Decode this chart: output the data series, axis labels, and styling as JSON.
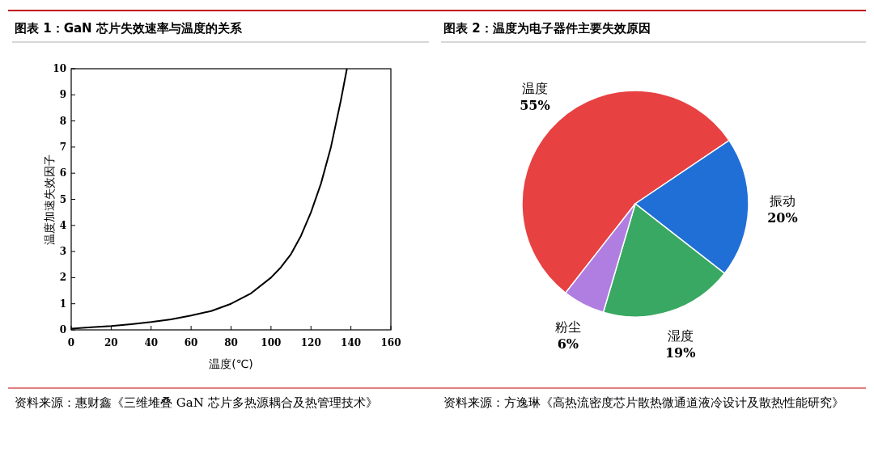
{
  "chart_data": [
    {
      "type": "line",
      "title": "图表 1：GaN 芯片失效速率与温度的关系",
      "xlabel": "温度(℃)",
      "ylabel": "温度加速失效因子",
      "x": [
        0,
        10,
        20,
        30,
        40,
        50,
        60,
        70,
        80,
        90,
        100,
        105,
        110,
        115,
        120,
        125,
        130,
        135,
        138
      ],
      "series": [
        {
          "color": "#000000",
          "values": [
            0.05,
            0.1,
            0.15,
            0.22,
            0.3,
            0.4,
            0.55,
            0.72,
            1.0,
            1.4,
            2.0,
            2.4,
            2.9,
            3.6,
            4.5,
            5.6,
            7.0,
            8.8,
            10
          ]
        }
      ],
      "xlim": [
        0,
        160
      ],
      "ylim": [
        0,
        10
      ],
      "xticks": [
        0,
        20,
        40,
        60,
        80,
        100,
        120,
        140,
        160
      ],
      "yticks": [
        0,
        1,
        2,
        3,
        4,
        5,
        6,
        7,
        8,
        9,
        10
      ],
      "grid": false,
      "marker": "none",
      "line_style": "solid",
      "annotations": [
        "资料来源：惠财鑫《三维堆叠 GaN 芯片多热源耦合及热管理技术》"
      ]
    },
    {
      "type": "pie",
      "title": "图表 2：温度为电子器件主要失效原因",
      "categories": [
        "温度",
        "振动",
        "湿度",
        "粉尘"
      ],
      "values": [
        55,
        20,
        19,
        6
      ],
      "colors": [
        "#e84141",
        "#1f6fd6",
        "#38a862",
        "#b07ee0"
      ],
      "value_labels": [
        "55%",
        "20%",
        "19%",
        "6%"
      ],
      "annotations": [
        "资料来源：方逸琳《高热流密度芯片散热微通道液冷设计及散热性能研究》"
      ]
    }
  ]
}
